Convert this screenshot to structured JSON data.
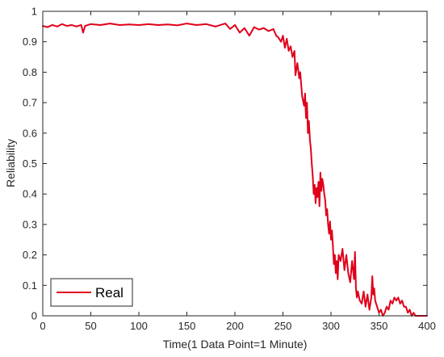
{
  "chart_data": {
    "type": "line",
    "xlabel": "Time(1 Data Point=1 Minute)",
    "ylabel": "Reliability",
    "xlim": [
      0,
      400
    ],
    "ylim": [
      0,
      1
    ],
    "xticks": [
      0,
      50,
      100,
      150,
      200,
      250,
      300,
      350,
      400
    ],
    "yticks": [
      0,
      0.1,
      0.2,
      0.3,
      0.4,
      0.5,
      0.6,
      0.7,
      0.8,
      0.9,
      1
    ],
    "ytick_labels": [
      "0",
      "0.1",
      "0.2",
      "0.3",
      "0.4",
      "0.5",
      "0.6",
      "0.7",
      "0.8",
      "0.9",
      "1"
    ],
    "grid": false,
    "legend_position": "bottom-left",
    "series": [
      {
        "name": "Real",
        "color": "#e0001a",
        "x": [
          0,
          5,
          10,
          15,
          20,
          25,
          30,
          35,
          40,
          42,
          44,
          50,
          60,
          70,
          80,
          90,
          100,
          110,
          120,
          130,
          140,
          150,
          160,
          170,
          180,
          190,
          195,
          200,
          205,
          210,
          215,
          220,
          225,
          230,
          235,
          240,
          243,
          245,
          248,
          250,
          252,
          254,
          256,
          258,
          260,
          262,
          263,
          265,
          267,
          268,
          270,
          272,
          273,
          274,
          275,
          276,
          277,
          278,
          279,
          280,
          281,
          282,
          283,
          284,
          285,
          286,
          287,
          288,
          289,
          290,
          291,
          292,
          293,
          294,
          295,
          296,
          297,
          298,
          299,
          300,
          301,
          302,
          303,
          304,
          305,
          306,
          307,
          308,
          310,
          312,
          314,
          316,
          318,
          320,
          322,
          324,
          325,
          326,
          327,
          328,
          330,
          332,
          334,
          336,
          338,
          340,
          342,
          343,
          344,
          345,
          346,
          348,
          350,
          352,
          354,
          356,
          358,
          360,
          362,
          364,
          366,
          368,
          370,
          372,
          374,
          376,
          378,
          380,
          382,
          384,
          386,
          388,
          390,
          395,
          400
        ],
        "y": [
          0.952,
          0.948,
          0.955,
          0.95,
          0.958,
          0.952,
          0.955,
          0.95,
          0.955,
          0.93,
          0.952,
          0.958,
          0.955,
          0.96,
          0.955,
          0.957,
          0.955,
          0.958,
          0.955,
          0.957,
          0.954,
          0.96,
          0.955,
          0.958,
          0.95,
          0.96,
          0.942,
          0.955,
          0.93,
          0.945,
          0.92,
          0.948,
          0.94,
          0.945,
          0.935,
          0.942,
          0.92,
          0.915,
          0.9,
          0.92,
          0.88,
          0.91,
          0.87,
          0.885,
          0.85,
          0.87,
          0.79,
          0.83,
          0.78,
          0.8,
          0.72,
          0.69,
          0.73,
          0.65,
          0.7,
          0.6,
          0.64,
          0.58,
          0.55,
          0.5,
          0.46,
          0.4,
          0.43,
          0.37,
          0.42,
          0.39,
          0.44,
          0.36,
          0.47,
          0.41,
          0.45,
          0.43,
          0.4,
          0.38,
          0.33,
          0.35,
          0.3,
          0.27,
          0.31,
          0.25,
          0.28,
          0.23,
          0.17,
          0.2,
          0.14,
          0.18,
          0.12,
          0.2,
          0.18,
          0.22,
          0.15,
          0.2,
          0.14,
          0.11,
          0.18,
          0.12,
          0.21,
          0.09,
          0.06,
          0.08,
          0.05,
          0.04,
          0.08,
          0.03,
          0.07,
          0.02,
          0.06,
          0.13,
          0.07,
          0.09,
          0.05,
          0.03,
          0.01,
          0.02,
          0.0,
          0.01,
          0.03,
          0.02,
          0.05,
          0.04,
          0.06,
          0.05,
          0.06,
          0.04,
          0.05,
          0.03,
          0.03,
          0.01,
          0.02,
          0.0,
          0.01,
          0.0,
          0.0,
          0.0,
          0.0
        ]
      }
    ]
  }
}
